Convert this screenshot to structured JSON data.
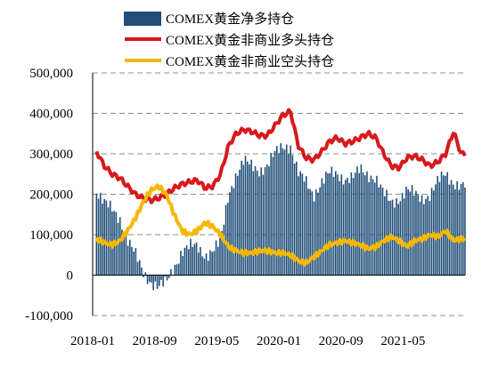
{
  "chart_data": {
    "type": "bar+line",
    "title": "",
    "xlabel": "",
    "ylabel": "",
    "ylim": [
      -100000,
      500000
    ],
    "y_ticks": [
      -100000,
      0,
      100000,
      200000,
      300000,
      400000,
      500000
    ],
    "y_tick_labels": [
      "-100,000",
      "0",
      "100,000",
      "200,000",
      "300,000",
      "400,000",
      "500,000"
    ],
    "x_tick_labels": [
      "2018-01",
      "2018-09",
      "2019-05",
      "2020-01",
      "2020-09",
      "2021-05"
    ],
    "x_tick_dates": [
      "2018-01",
      "2018-09",
      "2019-05",
      "2020-01",
      "2020-09",
      "2021-05"
    ],
    "x_range": [
      "2018-01",
      "2021-12"
    ],
    "grid": "horizontal dashed",
    "legend": "top-center",
    "series": [
      {
        "name": "COMEX黄金净多持仓",
        "kind": "bar",
        "color": "#1f4e79",
        "points": [
          [
            "2018-01",
            210000
          ],
          [
            "2018-02",
            180000
          ],
          [
            "2018-03",
            160000
          ],
          [
            "2018-04",
            140000
          ],
          [
            "2018-05",
            90000
          ],
          [
            "2018-06",
            50000
          ],
          [
            "2018-07",
            5000
          ],
          [
            "2018-08",
            -15000
          ],
          [
            "2018-09",
            -30000
          ],
          [
            "2018-10",
            -20000
          ],
          [
            "2018-11",
            20000
          ],
          [
            "2018-12",
            60000
          ],
          [
            "2019-01",
            70000
          ],
          [
            "2019-02",
            70000
          ],
          [
            "2019-03",
            50000
          ],
          [
            "2019-04",
            60000
          ],
          [
            "2019-05",
            80000
          ],
          [
            "2019-06",
            200000
          ],
          [
            "2019-07",
            250000
          ],
          [
            "2019-08",
            280000
          ],
          [
            "2019-09",
            270000
          ],
          [
            "2019-10",
            260000
          ],
          [
            "2019-11",
            270000
          ],
          [
            "2019-12",
            300000
          ],
          [
            "2020-01",
            320000
          ],
          [
            "2020-02",
            320000
          ],
          [
            "2020-03",
            250000
          ],
          [
            "2020-04",
            230000
          ],
          [
            "2020-05",
            200000
          ],
          [
            "2020-06",
            230000
          ],
          [
            "2020-07",
            250000
          ],
          [
            "2020-08",
            250000
          ],
          [
            "2020-09",
            240000
          ],
          [
            "2020-10",
            240000
          ],
          [
            "2020-11",
            260000
          ],
          [
            "2020-12",
            250000
          ],
          [
            "2021-01",
            240000
          ],
          [
            "2021-02",
            200000
          ],
          [
            "2021-03",
            180000
          ],
          [
            "2021-04",
            190000
          ],
          [
            "2021-05",
            210000
          ],
          [
            "2021-06",
            200000
          ],
          [
            "2021-07",
            190000
          ],
          [
            "2021-08",
            200000
          ],
          [
            "2021-09",
            230000
          ],
          [
            "2021-10",
            250000
          ],
          [
            "2021-11",
            230000
          ],
          [
            "2021-12",
            220000
          ]
        ]
      },
      {
        "name": "COMEX黄金非商业多头持仓",
        "kind": "line",
        "color": "#d7191c",
        "points": [
          [
            "2018-01",
            305000
          ],
          [
            "2018-02",
            270000
          ],
          [
            "2018-03",
            250000
          ],
          [
            "2018-04",
            240000
          ],
          [
            "2018-05",
            220000
          ],
          [
            "2018-06",
            200000
          ],
          [
            "2018-07",
            190000
          ],
          [
            "2018-08",
            185000
          ],
          [
            "2018-09",
            190000
          ],
          [
            "2018-10",
            200000
          ],
          [
            "2018-11",
            215000
          ],
          [
            "2018-12",
            225000
          ],
          [
            "2019-01",
            230000
          ],
          [
            "2019-02",
            235000
          ],
          [
            "2019-03",
            215000
          ],
          [
            "2019-04",
            220000
          ],
          [
            "2019-05",
            250000
          ],
          [
            "2019-06",
            320000
          ],
          [
            "2019-07",
            350000
          ],
          [
            "2019-08",
            360000
          ],
          [
            "2019-09",
            355000
          ],
          [
            "2019-10",
            345000
          ],
          [
            "2019-11",
            345000
          ],
          [
            "2019-12",
            370000
          ],
          [
            "2020-01",
            395000
          ],
          [
            "2020-02",
            405000
          ],
          [
            "2020-03",
            320000
          ],
          [
            "2020-04",
            290000
          ],
          [
            "2020-05",
            285000
          ],
          [
            "2020-06",
            305000
          ],
          [
            "2020-07",
            330000
          ],
          [
            "2020-08",
            340000
          ],
          [
            "2020-09",
            325000
          ],
          [
            "2020-10",
            330000
          ],
          [
            "2020-11",
            340000
          ],
          [
            "2020-12",
            350000
          ],
          [
            "2021-01",
            340000
          ],
          [
            "2021-02",
            300000
          ],
          [
            "2021-03",
            270000
          ],
          [
            "2021-04",
            265000
          ],
          [
            "2021-05",
            290000
          ],
          [
            "2021-06",
            295000
          ],
          [
            "2021-07",
            285000
          ],
          [
            "2021-08",
            270000
          ],
          [
            "2021-09",
            280000
          ],
          [
            "2021-10",
            300000
          ],
          [
            "2021-11",
            355000
          ],
          [
            "2021-12",
            300000
          ]
        ]
      },
      {
        "name": "COMEX黄金非商业空头持仓",
        "kind": "line",
        "color": "#f5b800",
        "points": [
          [
            "2018-01",
            90000
          ],
          [
            "2018-02",
            80000
          ],
          [
            "2018-03",
            75000
          ],
          [
            "2018-04",
            85000
          ],
          [
            "2018-05",
            110000
          ],
          [
            "2018-06",
            140000
          ],
          [
            "2018-07",
            180000
          ],
          [
            "2018-08",
            210000
          ],
          [
            "2018-09",
            220000
          ],
          [
            "2018-10",
            200000
          ],
          [
            "2018-11",
            150000
          ],
          [
            "2018-12",
            110000
          ],
          [
            "2019-01",
            100000
          ],
          [
            "2019-02",
            110000
          ],
          [
            "2019-03",
            130000
          ],
          [
            "2019-04",
            120000
          ],
          [
            "2019-05",
            100000
          ],
          [
            "2019-06",
            70000
          ],
          [
            "2019-07",
            60000
          ],
          [
            "2019-08",
            55000
          ],
          [
            "2019-09",
            55000
          ],
          [
            "2019-10",
            60000
          ],
          [
            "2019-11",
            60000
          ],
          [
            "2019-12",
            55000
          ],
          [
            "2020-01",
            55000
          ],
          [
            "2020-02",
            50000
          ],
          [
            "2020-03",
            35000
          ],
          [
            "2020-04",
            30000
          ],
          [
            "2020-05",
            45000
          ],
          [
            "2020-06",
            60000
          ],
          [
            "2020-07",
            75000
          ],
          [
            "2020-08",
            80000
          ],
          [
            "2020-09",
            85000
          ],
          [
            "2020-10",
            80000
          ],
          [
            "2020-11",
            75000
          ],
          [
            "2020-12",
            65000
          ],
          [
            "2021-01",
            70000
          ],
          [
            "2021-02",
            85000
          ],
          [
            "2021-03",
            95000
          ],
          [
            "2021-04",
            85000
          ],
          [
            "2021-05",
            70000
          ],
          [
            "2021-06",
            85000
          ],
          [
            "2021-07",
            90000
          ],
          [
            "2021-08",
            100000
          ],
          [
            "2021-09",
            95000
          ],
          [
            "2021-10",
            110000
          ],
          [
            "2021-11",
            85000
          ],
          [
            "2021-12",
            90000
          ]
        ]
      }
    ]
  }
}
